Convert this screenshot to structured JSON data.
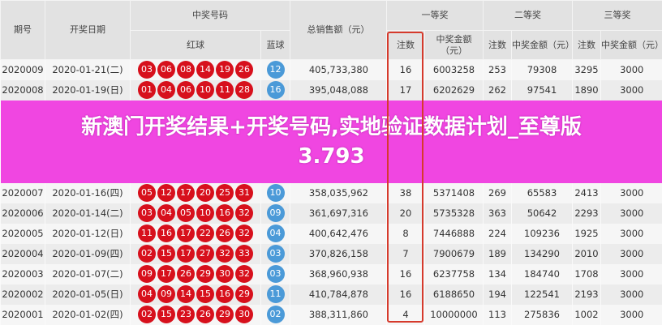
{
  "headers": {
    "issue": "期号",
    "date": "开奖日期",
    "numbers": "中奖号码",
    "red": "红球",
    "blue": "蓝球",
    "sales": "总销售额（元）",
    "first": "一等奖",
    "second": "二等奖",
    "third": "三等奖",
    "count": "注数",
    "amount": "中奖金额（元）"
  },
  "colors": {
    "red_ball": "#d7101c",
    "blue_ball": "#4b9ad8",
    "highlight": "#d63a2c",
    "overlay": "#f046e1"
  },
  "rows": [
    {
      "issue": "2020009",
      "date": "2020-01-21(二)",
      "red": [
        "03",
        "06",
        "08",
        "14",
        "19",
        "26"
      ],
      "blue": "12",
      "sales": "405,733,380",
      "c1": "16",
      "a1": "6003258",
      "c2": "253",
      "a2": "79308",
      "c3": "3295",
      "a3": "3000"
    },
    {
      "issue": "2020008",
      "date": "2020-01-19(日)",
      "red": [
        "01",
        "04",
        "06",
        "10",
        "11",
        "28"
      ],
      "blue": "16",
      "sales": "395,048,088",
      "c1": "17",
      "a1": "6202629",
      "c2": "262",
      "a2": "97541",
      "c3": "1890",
      "a3": "3000"
    },
    {
      "issue": "2020007",
      "date": "2020-01-16(四)",
      "red": [
        "05",
        "12",
        "17",
        "20",
        "25",
        "31"
      ],
      "blue": "10",
      "sales": "358,035,962",
      "c1": "38",
      "a1": "5371408",
      "c2": "269",
      "a2": "65583",
      "c3": "2413",
      "a3": "3000"
    },
    {
      "issue": "2020006",
      "date": "2020-01-14(二)",
      "red": [
        "03",
        "04",
        "05",
        "10",
        "16",
        "32"
      ],
      "blue": "09",
      "sales": "361,697,316",
      "c1": "20",
      "a1": "5735328",
      "c2": "363",
      "a2": "50642",
      "c3": "2293",
      "a3": "3000"
    },
    {
      "issue": "2020005",
      "date": "2020-01-12(日)",
      "red": [
        "11",
        "16",
        "17",
        "22",
        "26",
        "32"
      ],
      "blue": "04",
      "sales": "400,642,476",
      "c1": "8",
      "a1": "7446888",
      "c2": "224",
      "a2": "109236",
      "c3": "1925",
      "a3": "3000"
    },
    {
      "issue": "2020004",
      "date": "2020-01-09(四)",
      "red": [
        "02",
        "15",
        "17",
        "27",
        "32",
        "33"
      ],
      "blue": "03",
      "sales": "370,826,158",
      "c1": "7",
      "a1": "7900679",
      "c2": "189",
      "a2": "134290",
      "c3": "2010",
      "a3": "3000"
    },
    {
      "issue": "2020003",
      "date": "2020-01-07(二)",
      "red": [
        "09",
        "17",
        "26",
        "29",
        "30",
        "32"
      ],
      "blue": "03",
      "sales": "368,960,938",
      "c1": "16",
      "a1": "6237758",
      "c2": "134",
      "a2": "184740",
      "c3": "1708",
      "a3": "3000"
    },
    {
      "issue": "2020002",
      "date": "2020-01-05(日)",
      "red": [
        "04",
        "09",
        "14",
        "15",
        "16",
        "29"
      ],
      "blue": "11",
      "sales": "410,784,878",
      "c1": "16",
      "a1": "6188650",
      "c2": "194",
      "a2": "122541",
      "c3": "2193",
      "a3": "3000"
    },
    {
      "issue": "2020001",
      "date": "2020-01-02(四)",
      "red": [
        "02",
        "15",
        "23",
        "26",
        "29",
        "30"
      ],
      "blue": "02",
      "sales": "388,311,860",
      "c1": "4",
      "a1": "10000000",
      "c2": "113",
      "a2": "275836",
      "c3": "1002",
      "a3": "3000"
    }
  ],
  "overlay": {
    "line1": "新澳门开奖结果+开奖号码,实地验证数据计划_至尊版",
    "line2": "3.793"
  }
}
